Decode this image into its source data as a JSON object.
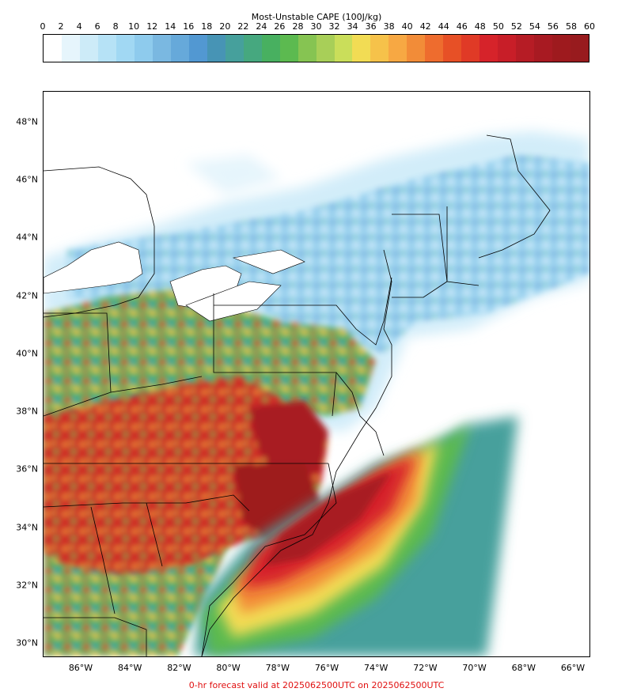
{
  "colorbar": {
    "title": "Most-Unstable CAPE (100J/kg)",
    "ticks": [
      "0",
      "2",
      "4",
      "6",
      "8",
      "10",
      "12",
      "14",
      "16",
      "18",
      "20",
      "22",
      "24",
      "26",
      "28",
      "30",
      "32",
      "34",
      "36",
      "38",
      "40",
      "42",
      "44",
      "46",
      "48",
      "50",
      "52",
      "54",
      "56",
      "58",
      "60"
    ],
    "colors": [
      "#ffffff",
      "#e6f5fc",
      "#cdebf8",
      "#b6e2f6",
      "#a1d8f3",
      "#8ecbed",
      "#7ab8e1",
      "#66a9da",
      "#5298d2",
      "#4794b5",
      "#46a09c",
      "#46a87f",
      "#48b060",
      "#5cba50",
      "#86c452",
      "#a8cf58",
      "#cade5a",
      "#f2dc54",
      "#f6c24a",
      "#f7a843",
      "#f28c38",
      "#ee6c2e",
      "#e75026",
      "#e03a26",
      "#d6232a",
      "#c81e28",
      "#b61c25",
      "#a81a22",
      "#9e1a1e",
      "#981b1e"
    ]
  },
  "map": {
    "lat_labels": [
      "48°N",
      "46°N",
      "44°N",
      "42°N",
      "40°N",
      "38°N",
      "36°N",
      "34°N",
      "32°N",
      "30°N"
    ],
    "lon_labels": [
      "86°W",
      "84°W",
      "82°W",
      "80°W",
      "78°W",
      "76°W",
      "74°W",
      "72°W",
      "70°W",
      "68°W",
      "66°W"
    ]
  },
  "footer": "0-hr forecast valid at 2025062500UTC on 2025062500UTC"
}
